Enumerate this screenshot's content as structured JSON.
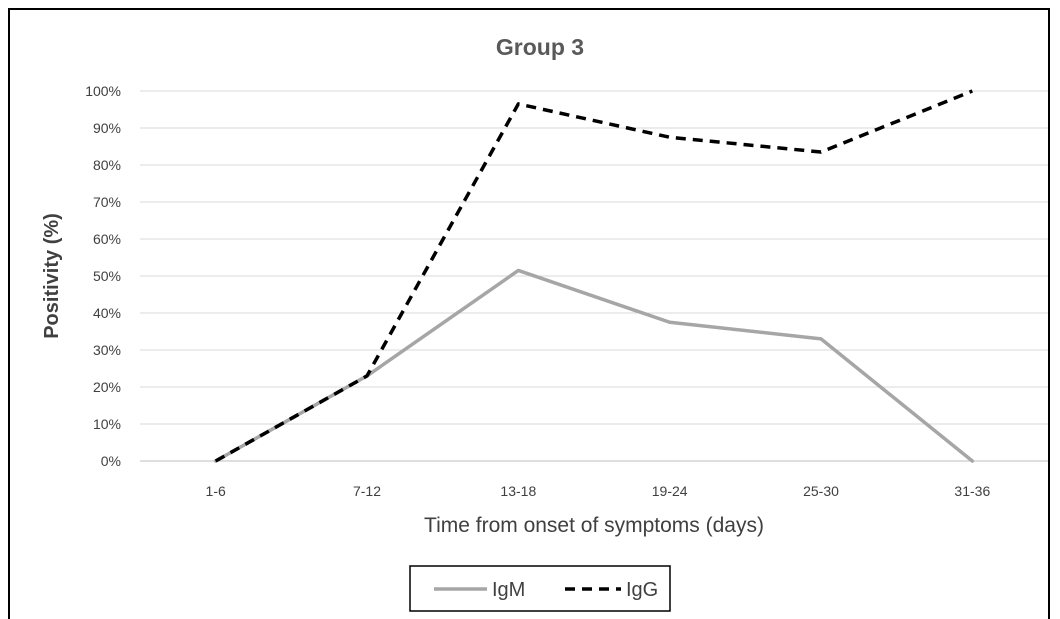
{
  "chart_data": {
    "type": "line",
    "title": "Group 3",
    "xlabel": "Time from onset of symptoms (days)",
    "ylabel": "Positivity (%)",
    "categories": [
      "1-6",
      "7-12",
      "13-18",
      "19-24",
      "25-30",
      "31-36"
    ],
    "yticks": [
      "0%",
      "10%",
      "20%",
      "30%",
      "40%",
      "50%",
      "60%",
      "70%",
      "80%",
      "90%",
      "100%"
    ],
    "ylim": [
      0,
      100
    ],
    "grid": true,
    "legend_position": "bottom",
    "series": [
      {
        "name": "IgM",
        "values": [
          0,
          23,
          51.5,
          37.5,
          33,
          0
        ],
        "color": "#a6a6a6",
        "style": "solid"
      },
      {
        "name": "IgG",
        "values": [
          0,
          23,
          96.5,
          87.5,
          83.5,
          100
        ],
        "color": "#000000",
        "style": "dashed"
      }
    ]
  }
}
